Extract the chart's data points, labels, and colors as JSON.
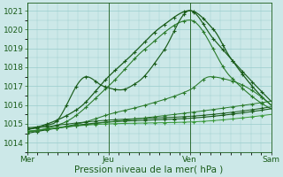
{
  "background_color": "#cce8e8",
  "plot_bg_color": "#cce8e8",
  "grid_color": "#99cccc",
  "line_color_dark": "#1a5c1a",
  "line_color_mid": "#2a7a2a",
  "line_color_light": "#3a9a3a",
  "ylabel_text": "Pression niveau de la mer( hPa )",
  "ylim": [
    1013.6,
    1021.4
  ],
  "yticks": [
    1014,
    1015,
    1016,
    1017,
    1018,
    1019,
    1020,
    1021
  ],
  "xtick_labels": [
    "Mer",
    "Jeu",
    "Ven",
    "Sam"
  ],
  "xtick_positions": [
    0,
    48,
    96,
    144
  ],
  "axis_fontsize": 7.5,
  "tick_fontsize": 6.5
}
